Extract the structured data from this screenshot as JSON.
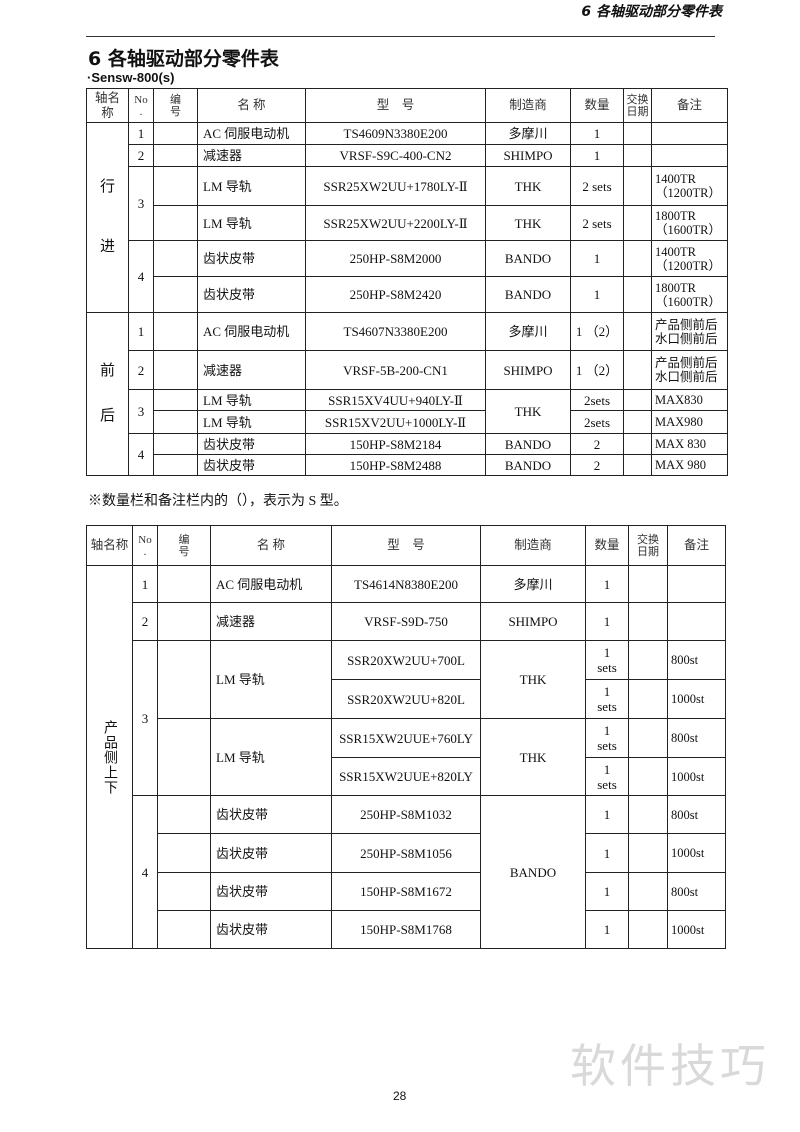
{
  "running_header": "6  各轴驱动部分零件表",
  "section_title": "6  各轴驱动部分零件表",
  "model_label": "·Sensw-800(s)",
  "headers": [
    "轴名称",
    "No\n.",
    "编\n号",
    "名 称",
    "型　号",
    "制造商",
    "数量",
    "交换\n日期",
    "备注"
  ],
  "table1": {
    "rows": [
      [
        {
          "t": "行\n\n\n\n进",
          "rs": 6,
          "c": "ax"
        },
        "1",
        "",
        "AC 伺服电动机",
        "TS4609N3380E200",
        "多摩川",
        "1",
        "",
        ""
      ],
      [
        "2",
        "",
        "减速器",
        "VRSF-S9C-400-CN2",
        "SHIMPO",
        "1",
        "",
        ""
      ],
      [
        {
          "t": "3",
          "rs": 2
        },
        "",
        "LM 导轨",
        "SSR25XW2UU+1780LY-Ⅱ",
        "THK",
        "2 sets",
        "",
        "1400TR\n（1200TR）"
      ],
      [
        "",
        "LM 导轨",
        "SSR25XW2UU+2200LY-Ⅱ",
        "THK",
        "2 sets",
        "",
        "1800TR\n（1600TR）"
      ],
      [
        {
          "t": "4",
          "rs": 2
        },
        "",
        "齿状皮带",
        "250HP-S8M2000",
        "BANDO",
        "1",
        "",
        "1400TR\n（1200TR）"
      ],
      [
        "",
        "齿状皮带",
        "250HP-S8M2420",
        "BANDO",
        "1",
        "",
        "1800TR\n（1600TR）"
      ],
      [
        {
          "t": "前\n\n\n后",
          "rs": 6,
          "c": "ax"
        },
        "1",
        "",
        "AC 伺服电动机",
        "TS4607N3380E200",
        "多摩川",
        "1 （2）",
        "",
        "产品侧前后\n水口侧前后"
      ],
      [
        "2",
        "",
        "减速器",
        "VRSF-5B-200-CN1",
        "SHIMPO",
        "1 （2）",
        "",
        "产品侧前后\n水口侧前后"
      ],
      [
        {
          "t": "3",
          "rs": 2
        },
        "",
        "LM 导轨",
        "SSR15XV4UU+940LY-Ⅱ",
        {
          "t": "THK",
          "rs": 2
        },
        "2sets",
        "",
        "MAX830"
      ],
      [
        "",
        "LM 导轨",
        "SSR15XV2UU+1000LY-Ⅱ",
        "2sets",
        "",
        "MAX980"
      ],
      [
        {
          "t": "4",
          "rs": 2
        },
        "",
        "齿状皮带",
        "150HP-S8M2184",
        "BANDO",
        "2",
        "",
        "MAX 830"
      ],
      [
        "",
        "齿状皮带",
        "150HP-S8M2488",
        "BANDO",
        "2",
        "",
        "MAX 980"
      ]
    ]
  },
  "note": "※数量栏和备注栏内的（），表示为 S 型。",
  "table2": {
    "rows": [
      [
        {
          "t": "产品侧上下",
          "rs": 10,
          "c": "axv"
        },
        "1",
        "",
        "AC 伺服电动机",
        "TS4614N8380E200",
        "多摩川",
        "1",
        "",
        ""
      ],
      [
        "2",
        "",
        "减速器",
        "VRSF-S9D-750",
        "SHIMPO",
        "1",
        "",
        ""
      ],
      [
        {
          "t": "3",
          "rs": 4
        },
        {
          "t": "",
          "rs": 2
        },
        {
          "t": "LM 导轨",
          "rs": 2
        },
        "SSR20XW2UU+700L",
        {
          "t": "THK",
          "rs": 2
        },
        "1\nsets",
        "",
        "800st"
      ],
      [
        "SSR20XW2UU+820L",
        "1\nsets",
        "",
        "1000st"
      ],
      [
        {
          "t": "",
          "rs": 2
        },
        {
          "t": "LM 导轨",
          "rs": 2
        },
        "SSR15XW2UUE+760LY",
        {
          "t": "THK",
          "rs": 2
        },
        "1\nsets",
        "",
        "800st"
      ],
      [
        "SSR15XW2UUE+820LY",
        "1\nsets",
        "",
        "1000st"
      ],
      [
        {
          "t": "4",
          "rs": 4
        },
        "",
        "齿状皮带",
        "250HP-S8M1032",
        {
          "t": "BANDO",
          "rs": 4
        },
        "1",
        "",
        "800st"
      ],
      [
        "",
        "齿状皮带",
        "250HP-S8M1056",
        "1",
        "",
        "1000st"
      ],
      [
        "",
        "齿状皮带",
        "150HP-S8M1672",
        "1",
        "",
        "800st"
      ],
      [
        "",
        "齿状皮带",
        "150HP-S8M1768",
        "1",
        "",
        "1000st"
      ]
    ]
  },
  "page_number": "28",
  "watermark": "软件技巧"
}
